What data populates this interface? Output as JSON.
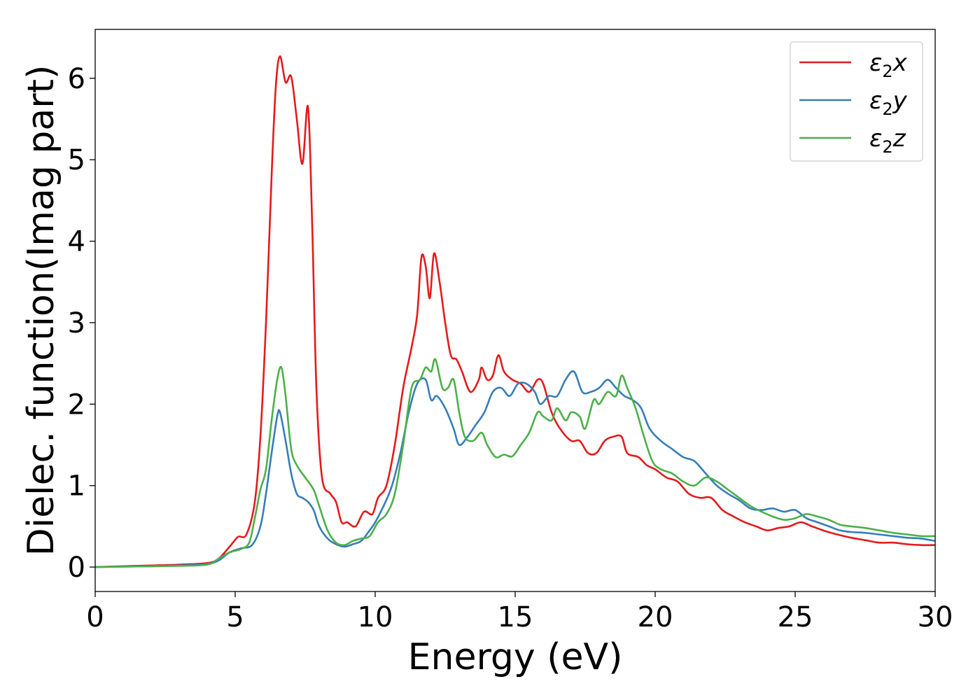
{
  "chart_data": {
    "type": "line",
    "title": "",
    "xlabel": "Energy (eV)",
    "ylabel": "Dielec. function(Imag part)",
    "xlim": [
      0,
      30
    ],
    "ylim": [
      -0.3,
      6.6
    ],
    "xticks": [
      0,
      5,
      10,
      15,
      20,
      25,
      30
    ],
    "yticks": [
      0,
      1,
      2,
      3,
      4,
      5,
      6
    ],
    "grid": false,
    "legend_position": "top-right",
    "series": [
      {
        "name": "ε2x",
        "legend_main": "ε",
        "legend_sub": "2",
        "legend_suffix": "x",
        "color": "#e41a1c",
        "points": [
          [
            0,
            0.0
          ],
          [
            1,
            0.01
          ],
          [
            2,
            0.02
          ],
          [
            3,
            0.03
          ],
          [
            4,
            0.05
          ],
          [
            4.4,
            0.1
          ],
          [
            4.8,
            0.25
          ],
          [
            5.1,
            0.37
          ],
          [
            5.4,
            0.4
          ],
          [
            5.7,
            0.8
          ],
          [
            5.9,
            1.6
          ],
          [
            6.1,
            3.0
          ],
          [
            6.3,
            4.8
          ],
          [
            6.45,
            5.9
          ],
          [
            6.6,
            6.27
          ],
          [
            6.8,
            5.95
          ],
          [
            7.0,
            6.02
          ],
          [
            7.2,
            5.5
          ],
          [
            7.4,
            4.95
          ],
          [
            7.6,
            5.65
          ],
          [
            7.75,
            4.2
          ],
          [
            7.9,
            2.2
          ],
          [
            8.1,
            1.1
          ],
          [
            8.4,
            0.9
          ],
          [
            8.6,
            0.8
          ],
          [
            8.8,
            0.55
          ],
          [
            9.0,
            0.55
          ],
          [
            9.3,
            0.5
          ],
          [
            9.6,
            0.68
          ],
          [
            9.9,
            0.65
          ],
          [
            10.1,
            0.85
          ],
          [
            10.4,
            1.0
          ],
          [
            10.7,
            1.5
          ],
          [
            11.0,
            2.2
          ],
          [
            11.3,
            2.7
          ],
          [
            11.5,
            3.1
          ],
          [
            11.65,
            3.8
          ],
          [
            11.8,
            3.7
          ],
          [
            11.95,
            3.3
          ],
          [
            12.1,
            3.85
          ],
          [
            12.3,
            3.5
          ],
          [
            12.5,
            3.0
          ],
          [
            12.7,
            2.6
          ],
          [
            12.9,
            2.55
          ],
          [
            13.1,
            2.4
          ],
          [
            13.4,
            2.15
          ],
          [
            13.7,
            2.3
          ],
          [
            13.8,
            2.45
          ],
          [
            14.0,
            2.3
          ],
          [
            14.2,
            2.35
          ],
          [
            14.4,
            2.6
          ],
          [
            14.6,
            2.4
          ],
          [
            14.9,
            2.3
          ],
          [
            15.2,
            2.25
          ],
          [
            15.5,
            2.15
          ],
          [
            15.8,
            2.3
          ],
          [
            16.0,
            2.25
          ],
          [
            16.3,
            1.9
          ],
          [
            16.6,
            1.7
          ],
          [
            17.0,
            1.55
          ],
          [
            17.3,
            1.55
          ],
          [
            17.6,
            1.4
          ],
          [
            17.9,
            1.4
          ],
          [
            18.2,
            1.55
          ],
          [
            18.5,
            1.6
          ],
          [
            18.8,
            1.6
          ],
          [
            19.0,
            1.4
          ],
          [
            19.4,
            1.35
          ],
          [
            19.7,
            1.25
          ],
          [
            20.0,
            1.2
          ],
          [
            20.4,
            1.1
          ],
          [
            20.8,
            1.05
          ],
          [
            21.2,
            0.9
          ],
          [
            21.6,
            0.85
          ],
          [
            22.0,
            0.85
          ],
          [
            22.4,
            0.7
          ],
          [
            22.8,
            0.62
          ],
          [
            23.2,
            0.55
          ],
          [
            23.6,
            0.5
          ],
          [
            24.0,
            0.45
          ],
          [
            24.4,
            0.48
          ],
          [
            24.8,
            0.5
          ],
          [
            25.2,
            0.55
          ],
          [
            25.6,
            0.5
          ],
          [
            26.0,
            0.45
          ],
          [
            26.5,
            0.4
          ],
          [
            27.0,
            0.36
          ],
          [
            27.5,
            0.33
          ],
          [
            28.0,
            0.3
          ],
          [
            28.5,
            0.3
          ],
          [
            29.0,
            0.28
          ],
          [
            29.5,
            0.27
          ],
          [
            30.0,
            0.27
          ]
        ]
      },
      {
        "name": "ε2y",
        "legend_main": "ε",
        "legend_sub": "2",
        "legend_suffix": "y",
        "color": "#377eb8",
        "points": [
          [
            0,
            0.0
          ],
          [
            1,
            0.005
          ],
          [
            2,
            0.01
          ],
          [
            3,
            0.02
          ],
          [
            4,
            0.04
          ],
          [
            4.4,
            0.08
          ],
          [
            4.8,
            0.18
          ],
          [
            5.2,
            0.23
          ],
          [
            5.6,
            0.27
          ],
          [
            5.9,
            0.5
          ],
          [
            6.1,
            0.9
          ],
          [
            6.3,
            1.4
          ],
          [
            6.5,
            1.85
          ],
          [
            6.6,
            1.9
          ],
          [
            6.8,
            1.55
          ],
          [
            7.0,
            1.15
          ],
          [
            7.2,
            0.9
          ],
          [
            7.4,
            0.85
          ],
          [
            7.6,
            0.8
          ],
          [
            7.8,
            0.7
          ],
          [
            8.0,
            0.5
          ],
          [
            8.3,
            0.35
          ],
          [
            8.6,
            0.28
          ],
          [
            8.9,
            0.25
          ],
          [
            9.2,
            0.28
          ],
          [
            9.5,
            0.32
          ],
          [
            9.8,
            0.45
          ],
          [
            10.0,
            0.55
          ],
          [
            10.3,
            0.75
          ],
          [
            10.6,
            1.0
          ],
          [
            10.9,
            1.4
          ],
          [
            11.2,
            1.9
          ],
          [
            11.5,
            2.25
          ],
          [
            11.8,
            2.3
          ],
          [
            12.0,
            2.05
          ],
          [
            12.2,
            2.1
          ],
          [
            12.5,
            1.95
          ],
          [
            12.8,
            1.7
          ],
          [
            13.0,
            1.5
          ],
          [
            13.3,
            1.6
          ],
          [
            13.6,
            1.75
          ],
          [
            13.9,
            1.9
          ],
          [
            14.2,
            2.15
          ],
          [
            14.5,
            2.2
          ],
          [
            14.8,
            2.1
          ],
          [
            15.1,
            2.25
          ],
          [
            15.4,
            2.25
          ],
          [
            15.7,
            2.15
          ],
          [
            15.9,
            2.0
          ],
          [
            16.2,
            2.1
          ],
          [
            16.5,
            2.1
          ],
          [
            16.8,
            2.3
          ],
          [
            17.1,
            2.4
          ],
          [
            17.4,
            2.15
          ],
          [
            17.7,
            2.15
          ],
          [
            18.0,
            2.2
          ],
          [
            18.3,
            2.3
          ],
          [
            18.6,
            2.2
          ],
          [
            18.9,
            2.1
          ],
          [
            19.2,
            2.05
          ],
          [
            19.5,
            1.95
          ],
          [
            19.8,
            1.7
          ],
          [
            20.2,
            1.55
          ],
          [
            20.6,
            1.45
          ],
          [
            21.0,
            1.35
          ],
          [
            21.4,
            1.3
          ],
          [
            21.8,
            1.15
          ],
          [
            22.2,
            1.0
          ],
          [
            22.6,
            0.9
          ],
          [
            23.0,
            0.82
          ],
          [
            23.4,
            0.72
          ],
          [
            23.8,
            0.7
          ],
          [
            24.2,
            0.72
          ],
          [
            24.6,
            0.68
          ],
          [
            25.0,
            0.7
          ],
          [
            25.4,
            0.6
          ],
          [
            25.8,
            0.55
          ],
          [
            26.2,
            0.5
          ],
          [
            26.6,
            0.45
          ],
          [
            27.0,
            0.43
          ],
          [
            27.5,
            0.42
          ],
          [
            28.0,
            0.4
          ],
          [
            28.5,
            0.38
          ],
          [
            29.0,
            0.36
          ],
          [
            29.5,
            0.35
          ],
          [
            30.0,
            0.32
          ]
        ]
      },
      {
        "name": "ε2z",
        "legend_main": "ε",
        "legend_sub": "2",
        "legend_suffix": "z",
        "color": "#4daf4a",
        "points": [
          [
            0,
            0.0
          ],
          [
            1,
            0.005
          ],
          [
            2,
            0.01
          ],
          [
            3,
            0.015
          ],
          [
            4,
            0.03
          ],
          [
            4.4,
            0.1
          ],
          [
            4.8,
            0.18
          ],
          [
            5.2,
            0.22
          ],
          [
            5.5,
            0.3
          ],
          [
            5.7,
            0.6
          ],
          [
            5.9,
            0.95
          ],
          [
            6.1,
            1.2
          ],
          [
            6.3,
            1.8
          ],
          [
            6.5,
            2.3
          ],
          [
            6.65,
            2.45
          ],
          [
            6.8,
            2.1
          ],
          [
            7.0,
            1.45
          ],
          [
            7.2,
            1.25
          ],
          [
            7.5,
            1.1
          ],
          [
            7.8,
            0.95
          ],
          [
            8.0,
            0.75
          ],
          [
            8.3,
            0.45
          ],
          [
            8.6,
            0.3
          ],
          [
            8.9,
            0.27
          ],
          [
            9.2,
            0.32
          ],
          [
            9.5,
            0.35
          ],
          [
            9.8,
            0.38
          ],
          [
            10.1,
            0.55
          ],
          [
            10.4,
            0.65
          ],
          [
            10.7,
            0.9
          ],
          [
            11.0,
            1.5
          ],
          [
            11.3,
            2.2
          ],
          [
            11.6,
            2.3
          ],
          [
            11.8,
            2.45
          ],
          [
            12.0,
            2.4
          ],
          [
            12.15,
            2.55
          ],
          [
            12.4,
            2.2
          ],
          [
            12.6,
            2.2
          ],
          [
            12.8,
            2.3
          ],
          [
            13.0,
            1.9
          ],
          [
            13.2,
            1.6
          ],
          [
            13.5,
            1.55
          ],
          [
            13.8,
            1.65
          ],
          [
            14.0,
            1.5
          ],
          [
            14.3,
            1.35
          ],
          [
            14.6,
            1.38
          ],
          [
            14.9,
            1.36
          ],
          [
            15.2,
            1.5
          ],
          [
            15.5,
            1.65
          ],
          [
            15.8,
            1.9
          ],
          [
            16.0,
            1.85
          ],
          [
            16.3,
            1.8
          ],
          [
            16.5,
            1.95
          ],
          [
            16.8,
            1.8
          ],
          [
            17.0,
            1.9
          ],
          [
            17.3,
            1.85
          ],
          [
            17.5,
            1.7
          ],
          [
            17.8,
            2.05
          ],
          [
            18.0,
            2.0
          ],
          [
            18.3,
            2.15
          ],
          [
            18.6,
            2.1
          ],
          [
            18.8,
            2.35
          ],
          [
            19.0,
            2.2
          ],
          [
            19.3,
            1.95
          ],
          [
            19.6,
            1.6
          ],
          [
            19.9,
            1.3
          ],
          [
            20.2,
            1.2
          ],
          [
            20.6,
            1.15
          ],
          [
            21.0,
            1.05
          ],
          [
            21.4,
            1.0
          ],
          [
            21.8,
            1.1
          ],
          [
            22.2,
            1.05
          ],
          [
            22.6,
            0.95
          ],
          [
            23.0,
            0.85
          ],
          [
            23.4,
            0.75
          ],
          [
            23.8,
            0.68
          ],
          [
            24.2,
            0.62
          ],
          [
            24.6,
            0.58
          ],
          [
            25.0,
            0.6
          ],
          [
            25.4,
            0.65
          ],
          [
            25.8,
            0.62
          ],
          [
            26.2,
            0.58
          ],
          [
            26.6,
            0.52
          ],
          [
            27.0,
            0.5
          ],
          [
            27.5,
            0.48
          ],
          [
            28.0,
            0.45
          ],
          [
            28.5,
            0.42
          ],
          [
            29.0,
            0.4
          ],
          [
            29.5,
            0.38
          ],
          [
            30.0,
            0.38
          ]
        ]
      }
    ]
  }
}
